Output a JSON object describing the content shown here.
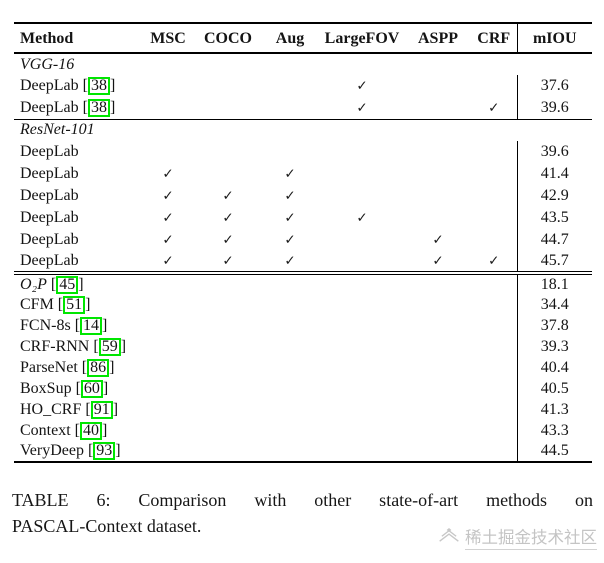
{
  "table": {
    "columns": [
      "Method",
      "MSC",
      "COCO",
      "Aug",
      "LargeFOV",
      "ASPP",
      "CRF",
      "mIOU"
    ],
    "check_mark": "✓",
    "citation_box_color": "#00e600",
    "sections": [
      {
        "title": "VGG-16",
        "rows": [
          {
            "method": "DeepLab",
            "cite": "38",
            "italic": false,
            "checks": [
              false,
              false,
              false,
              true,
              false,
              false
            ],
            "miou": "37.6"
          },
          {
            "method": "DeepLab",
            "cite": "38",
            "italic": false,
            "checks": [
              false,
              false,
              false,
              true,
              false,
              true
            ],
            "miou": "39.6"
          }
        ]
      },
      {
        "title": "ResNet-101",
        "rows": [
          {
            "method": "DeepLab",
            "cite": null,
            "italic": false,
            "checks": [
              false,
              false,
              false,
              false,
              false,
              false
            ],
            "miou": "39.6"
          },
          {
            "method": "DeepLab",
            "cite": null,
            "italic": false,
            "checks": [
              true,
              false,
              true,
              false,
              false,
              false
            ],
            "miou": "41.4"
          },
          {
            "method": "DeepLab",
            "cite": null,
            "italic": false,
            "checks": [
              true,
              true,
              true,
              false,
              false,
              false
            ],
            "miou": "42.9"
          },
          {
            "method": "DeepLab",
            "cite": null,
            "italic": false,
            "checks": [
              true,
              true,
              true,
              true,
              false,
              false
            ],
            "miou": "43.5"
          },
          {
            "method": "DeepLab",
            "cite": null,
            "italic": false,
            "checks": [
              true,
              true,
              true,
              false,
              true,
              false
            ],
            "miou": "44.7"
          },
          {
            "method": "DeepLab",
            "cite": null,
            "italic": false,
            "checks": [
              true,
              true,
              true,
              false,
              true,
              true
            ],
            "miou": "45.7"
          }
        ]
      },
      {
        "title": null,
        "rows": [
          {
            "method": "O₂P",
            "cite": "45",
            "italic": true,
            "checks": [
              false,
              false,
              false,
              false,
              false,
              false
            ],
            "miou": "18.1"
          },
          {
            "method": "CFM",
            "cite": "51",
            "italic": false,
            "checks": [
              false,
              false,
              false,
              false,
              false,
              false
            ],
            "miou": "34.4"
          },
          {
            "method": "FCN-8s",
            "cite": "14",
            "italic": false,
            "checks": [
              false,
              false,
              false,
              false,
              false,
              false
            ],
            "miou": "37.8"
          },
          {
            "method": "CRF-RNN",
            "cite": "59",
            "italic": false,
            "checks": [
              false,
              false,
              false,
              false,
              false,
              false
            ],
            "miou": "39.3"
          },
          {
            "method": "ParseNet",
            "cite": "86",
            "italic": false,
            "checks": [
              false,
              false,
              false,
              false,
              false,
              false
            ],
            "miou": "40.4"
          },
          {
            "method": "BoxSup",
            "cite": "60",
            "italic": false,
            "checks": [
              false,
              false,
              false,
              false,
              false,
              false
            ],
            "miou": "40.5"
          },
          {
            "method": "HO_CRF",
            "cite": "91",
            "italic": false,
            "checks": [
              false,
              false,
              false,
              false,
              false,
              false
            ],
            "miou": "41.3"
          },
          {
            "method": "Context",
            "cite": "40",
            "italic": false,
            "checks": [
              false,
              false,
              false,
              false,
              false,
              false
            ],
            "miou": "43.3"
          },
          {
            "method": "VeryDeep",
            "cite": "93",
            "italic": false,
            "checks": [
              false,
              false,
              false,
              false,
              false,
              false
            ],
            "miou": "44.5"
          }
        ]
      }
    ]
  },
  "caption": {
    "line1": "TABLE 6: Comparison with other state-of-art methods on",
    "line2": "PASCAL-Context dataset."
  },
  "watermark": {
    "text": "稀土掘金技术社区"
  }
}
